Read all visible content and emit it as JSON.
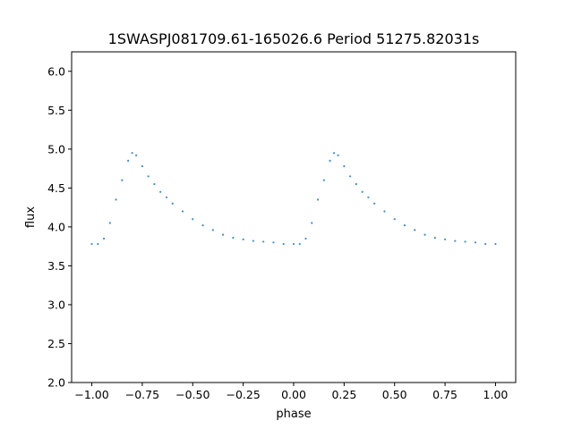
{
  "chart_data": {
    "type": "scatter",
    "title": "1SWASPJ081709.61-165026.6 Period 51275.82031s",
    "xlabel": "phase",
    "ylabel": "flux",
    "xlim": [
      -1.1,
      1.1
    ],
    "ylim": [
      2.0,
      6.25
    ],
    "x_ticks": [
      -1.0,
      -0.75,
      -0.5,
      -0.25,
      0.0,
      0.25,
      0.5,
      0.75,
      1.0
    ],
    "x_tick_labels": [
      "−1.00",
      "−0.75",
      "−0.50",
      "−0.25",
      "0.00",
      "0.25",
      "0.50",
      "0.75",
      "1.00"
    ],
    "y_ticks": [
      2.0,
      2.5,
      3.0,
      3.5,
      4.0,
      4.5,
      5.0,
      5.5,
      6.0
    ],
    "y_tick_labels": [
      "2.0",
      "2.5",
      "3.0",
      "3.5",
      "4.0",
      "4.5",
      "5.0",
      "5.5",
      "6.0"
    ],
    "grid": false,
    "marker_color": "#1f77b4",
    "series": [
      {
        "x": [
          -1.0,
          -0.97,
          -0.94,
          -0.91,
          -0.88,
          -0.85,
          -0.82,
          -0.8,
          -0.78,
          -0.75,
          -0.72,
          -0.69,
          -0.66,
          -0.63,
          -0.6,
          -0.55,
          -0.5,
          -0.45,
          -0.4,
          -0.35,
          -0.3,
          -0.25,
          -0.2,
          -0.15,
          -0.1,
          -0.05,
          0.0,
          0.03,
          0.06,
          0.09,
          0.12,
          0.15,
          0.18,
          0.2,
          0.22,
          0.25,
          0.28,
          0.31,
          0.34,
          0.37,
          0.4,
          0.45,
          0.5,
          0.55,
          0.6,
          0.65,
          0.7,
          0.75,
          0.8,
          0.85,
          0.9,
          0.95,
          1.0
        ],
        "y": [
          3.78,
          3.78,
          3.85,
          4.05,
          4.35,
          4.6,
          4.85,
          4.95,
          4.92,
          4.78,
          4.65,
          4.55,
          4.45,
          4.38,
          4.3,
          4.2,
          4.1,
          4.02,
          3.96,
          3.9,
          3.86,
          3.84,
          3.82,
          3.81,
          3.8,
          3.78,
          3.78,
          3.78,
          3.85,
          4.05,
          4.35,
          4.6,
          4.85,
          4.95,
          4.92,
          4.78,
          4.65,
          4.55,
          4.45,
          4.38,
          4.3,
          4.2,
          4.1,
          4.02,
          3.96,
          3.9,
          3.86,
          3.84,
          3.82,
          3.81,
          3.8,
          3.78,
          3.78
        ]
      }
    ]
  }
}
